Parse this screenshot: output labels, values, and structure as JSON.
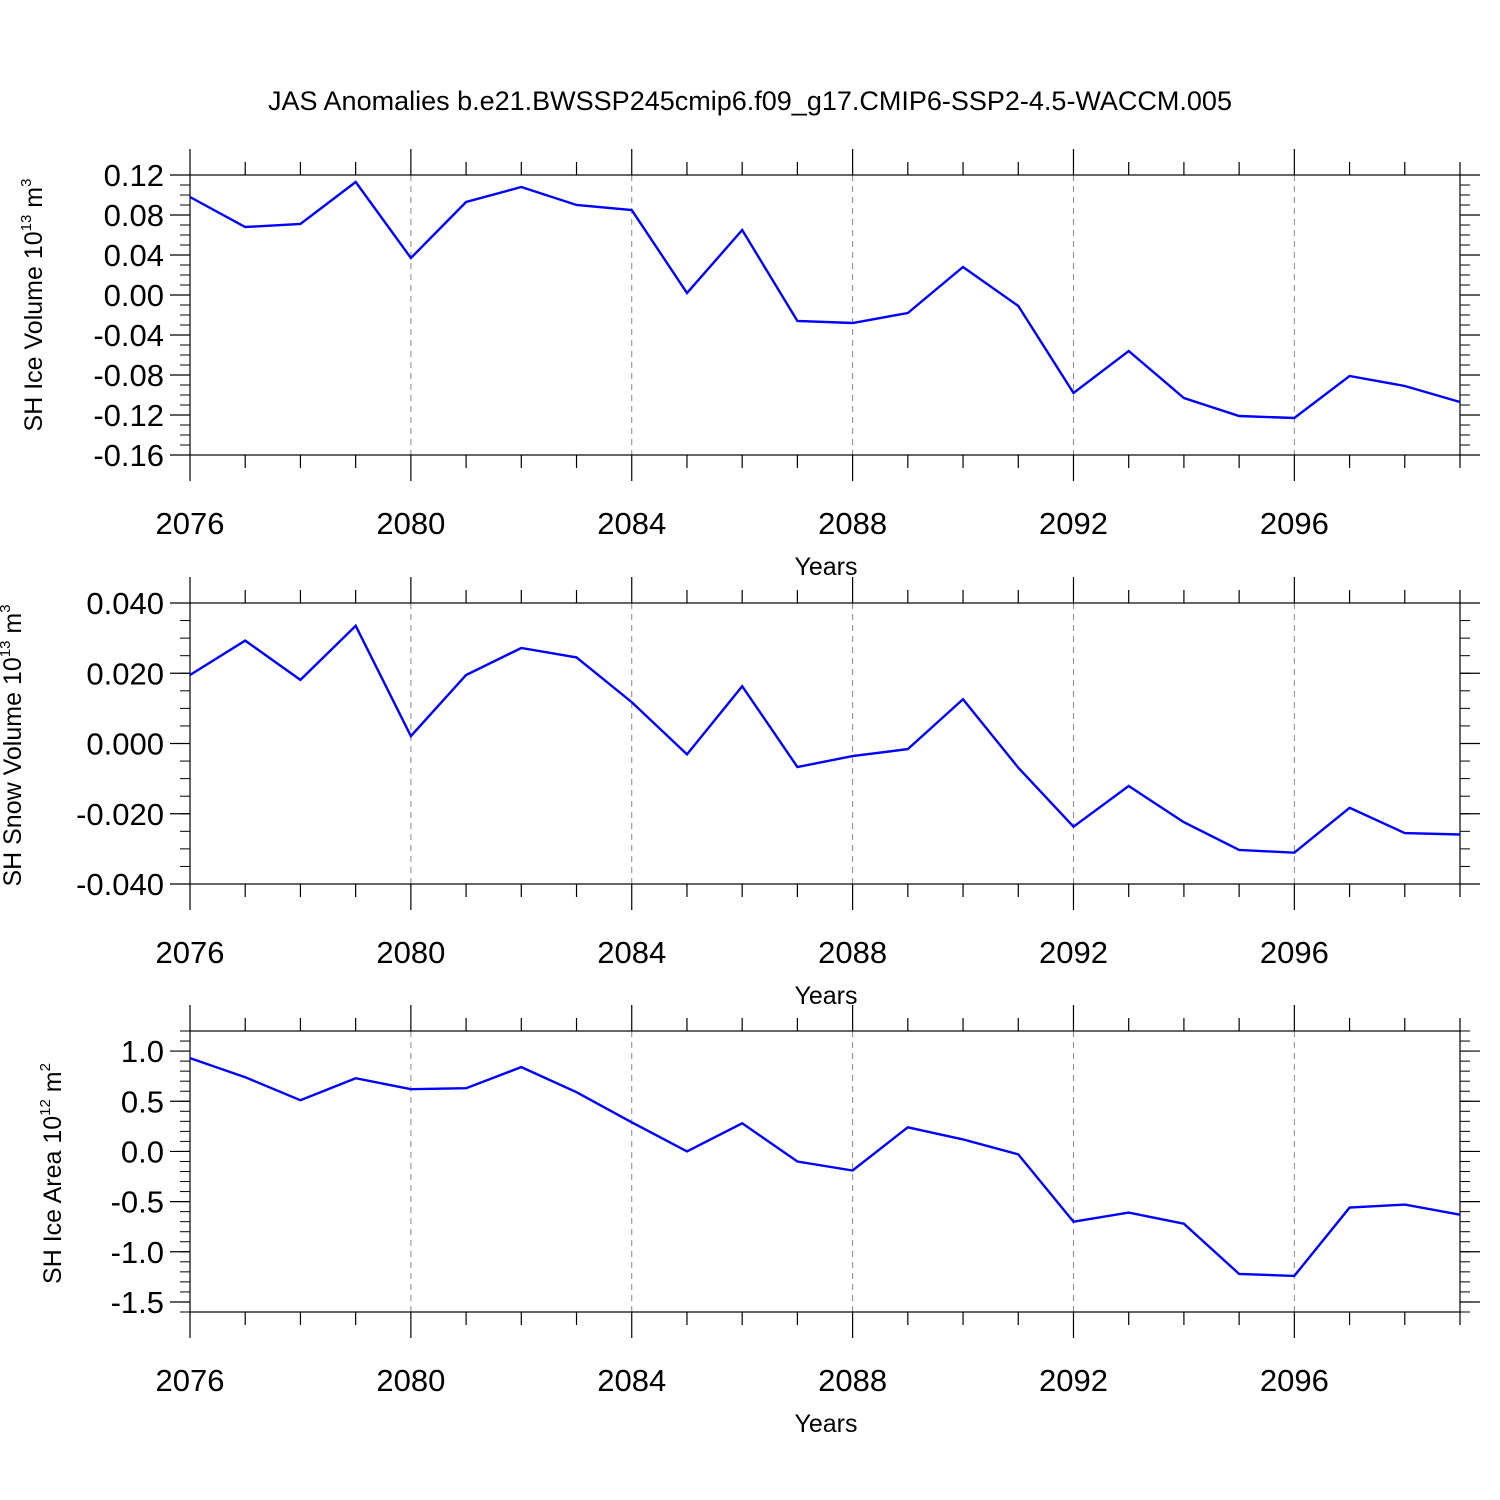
{
  "title": "JAS Anomalies b.e21.BWSSP245cmip6.f09_g17.CMIP6-SSP2-4.5-WACCM.005",
  "chart_data": [
    {
      "type": "line",
      "ylabel_main": "SH Ice Volume 10",
      "ylabel_exp": "13",
      "ylabel_unit": " m",
      "ylabel_unit_exp": "3",
      "xlabel": "Years",
      "xlim": [
        2076,
        2099
      ],
      "ylim": [
        -0.16,
        0.12
      ],
      "x_ticks": [
        "2076",
        "2080",
        "2084",
        "2088",
        "2092",
        "2096"
      ],
      "y_ticks": [
        "0.12",
        "0.08",
        "0.04",
        "0.00",
        "-0.04",
        "-0.08",
        "-0.12",
        "-0.16"
      ],
      "line_color": "#0000ff",
      "grid": "vertical dashed at major x ticks",
      "x": [
        2076,
        2077,
        2078,
        2079,
        2080,
        2081,
        2082,
        2083,
        2084,
        2085,
        2086,
        2087,
        2088,
        2089,
        2090,
        2091,
        2092,
        2093,
        2094,
        2095,
        2096,
        2097,
        2098,
        2099
      ],
      "values": [
        0.098,
        0.068,
        0.071,
        0.113,
        0.037,
        0.093,
        0.108,
        0.09,
        0.085,
        0.002,
        0.065,
        -0.026,
        -0.028,
        -0.018,
        0.028,
        -0.011,
        -0.098,
        -0.056,
        -0.103,
        -0.121,
        -0.123,
        -0.081,
        -0.091,
        -0.107
      ]
    },
    {
      "type": "line",
      "ylabel_main": "SH Snow Volume 10",
      "ylabel_exp": "13",
      "ylabel_unit": " m",
      "ylabel_unit_exp": "3",
      "xlabel": "Years",
      "xlim": [
        2076,
        2099
      ],
      "ylim": [
        -0.04,
        0.04
      ],
      "x_ticks": [
        "2076",
        "2080",
        "2084",
        "2088",
        "2092",
        "2096"
      ],
      "y_ticks": [
        "0.040",
        "0.020",
        "0.000",
        "-0.020",
        "-0.040"
      ],
      "line_color": "#0000ff",
      "grid": "vertical dashed at major x ticks",
      "x": [
        2076,
        2077,
        2078,
        2079,
        2080,
        2081,
        2082,
        2083,
        2084,
        2085,
        2086,
        2087,
        2088,
        2089,
        2090,
        2091,
        2092,
        2093,
        2094,
        2095,
        2096,
        2097,
        2098,
        2099
      ],
      "values": [
        0.0195,
        0.0293,
        0.0181,
        0.0335,
        0.0021,
        0.0195,
        0.0272,
        0.0245,
        0.0118,
        -0.0031,
        0.0163,
        -0.0067,
        -0.0036,
        -0.0016,
        0.0126,
        -0.0069,
        -0.0237,
        -0.0121,
        -0.0224,
        -0.0303,
        -0.0311,
        -0.0183,
        -0.0255,
        -0.0259
      ]
    },
    {
      "type": "line",
      "ylabel_main": "SH Ice Area 10",
      "ylabel_exp": "12",
      "ylabel_unit": " m",
      "ylabel_unit_exp": "2",
      "xlabel": "Years",
      "xlim": [
        2076,
        2099
      ],
      "ylim": [
        -1.6,
        1.2
      ],
      "x_ticks": [
        "2076",
        "2080",
        "2084",
        "2088",
        "2092",
        "2096"
      ],
      "y_ticks": [
        "1.0",
        "0.5",
        "0.0",
        "-0.5",
        "-1.0",
        "-1.5"
      ],
      "line_color": "#0000ff",
      "grid": "vertical dashed at major x ticks",
      "x": [
        2076,
        2077,
        2078,
        2079,
        2080,
        2081,
        2082,
        2083,
        2084,
        2085,
        2086,
        2087,
        2088,
        2089,
        2090,
        2091,
        2092,
        2093,
        2094,
        2095,
        2096,
        2097,
        2098,
        2099
      ],
      "values": [
        0.93,
        0.74,
        0.51,
        0.73,
        0.62,
        0.63,
        0.84,
        0.59,
        0.29,
        0.0,
        0.28,
        -0.1,
        -0.19,
        0.24,
        0.12,
        -0.03,
        -0.7,
        -0.61,
        -0.72,
        -1.22,
        -1.24,
        -0.56,
        -0.53,
        -0.63
      ]
    }
  ]
}
